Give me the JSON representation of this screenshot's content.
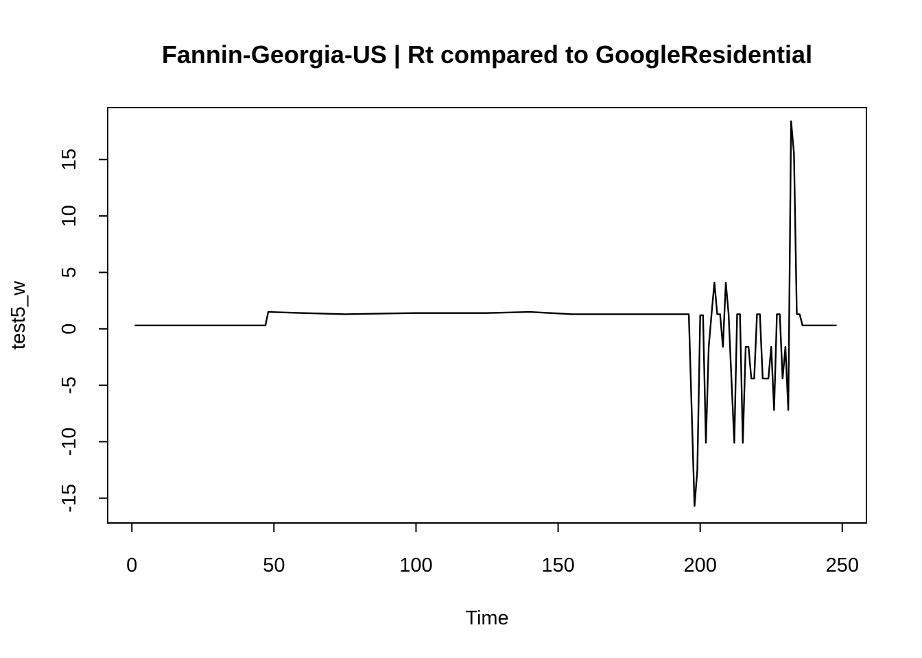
{
  "chart_data": {
    "type": "line",
    "title": "Fannin-Georgia-US | Rt compared to GoogleResidential",
    "xlabel": "Time",
    "ylabel": "test5_w",
    "xlim": [
      -8.5,
      258.5
    ],
    "ylim": [
      -17.2,
      19.6
    ],
    "x_ticks": [
      0,
      50,
      100,
      150,
      200,
      250
    ],
    "y_ticks": [
      -15,
      -10,
      -5,
      0,
      5,
      10,
      15
    ],
    "grid": false,
    "legend": "none",
    "line_color": "#000000",
    "series": [
      {
        "x": [
          1,
          47,
          48,
          60,
          75,
          100,
          125,
          140,
          155,
          170,
          190,
          196,
          198,
          199,
          200,
          201,
          202,
          203,
          204,
          205,
          206,
          207,
          208,
          209,
          210,
          211,
          212,
          213,
          214,
          215,
          216,
          217,
          218,
          219,
          220,
          221,
          222,
          223,
          224,
          225,
          226,
          227,
          228,
          229,
          230,
          231,
          232,
          233,
          234,
          235,
          236,
          237,
          248
        ],
        "y": [
          0.3,
          0.3,
          1.5,
          1.4,
          1.3,
          1.4,
          1.4,
          1.5,
          1.3,
          1.3,
          1.3,
          1.3,
          -15.7,
          -12.5,
          1.2,
          1.2,
          -10.1,
          -1.6,
          1.3,
          4.1,
          1.3,
          1.3,
          -1.6,
          4.1,
          1.3,
          -4.4,
          -10.1,
          1.3,
          1.3,
          -10.1,
          -1.6,
          -1.6,
          -4.4,
          -4.4,
          1.3,
          1.3,
          -4.4,
          -4.4,
          -4.4,
          -1.6,
          -7.2,
          1.3,
          1.3,
          -4.4,
          -1.6,
          -7.2,
          18.4,
          15.5,
          1.3,
          1.3,
          0.3,
          0.3,
          0.3
        ]
      }
    ]
  }
}
